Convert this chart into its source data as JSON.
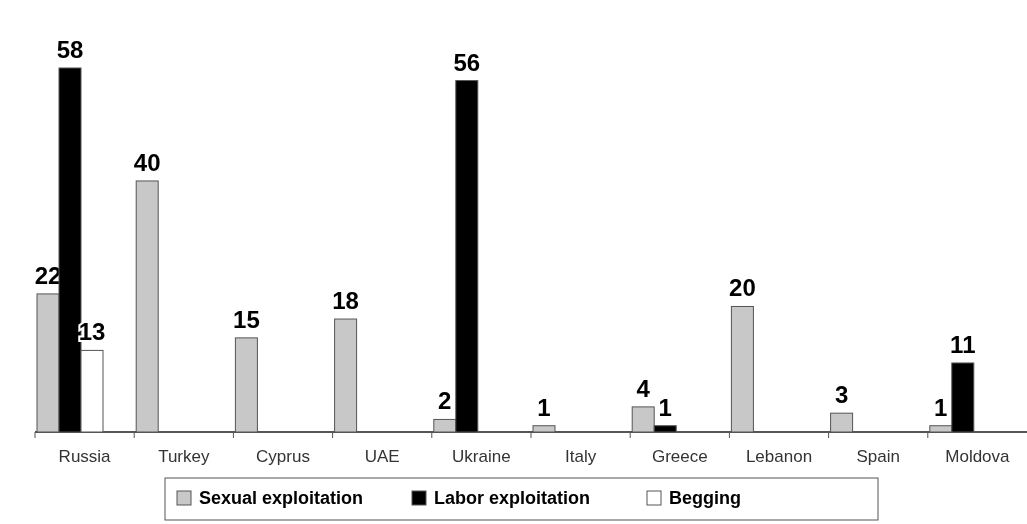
{
  "chart_data": {
    "type": "bar",
    "categories": [
      "Russia",
      "Turkey",
      "Cyprus",
      "UAE",
      "Ukraine",
      "Italy",
      "Greece",
      "Lebanon",
      "Spain",
      "Moldova"
    ],
    "series": [
      {
        "name": "Sexual exploitation",
        "color": "#c8c8c8",
        "values": [
          22,
          40,
          15,
          18,
          2,
          1,
          4,
          20,
          3,
          1
        ]
      },
      {
        "name": "Labor exploitation",
        "color": "#000000",
        "values": [
          58,
          null,
          null,
          null,
          56,
          null,
          1,
          null,
          null,
          11
        ]
      },
      {
        "name": "Begging",
        "color": "#ffffff",
        "values": [
          13,
          null,
          null,
          null,
          null,
          null,
          null,
          null,
          null,
          null
        ]
      }
    ],
    "data_labels": true,
    "legend": "bottom"
  }
}
